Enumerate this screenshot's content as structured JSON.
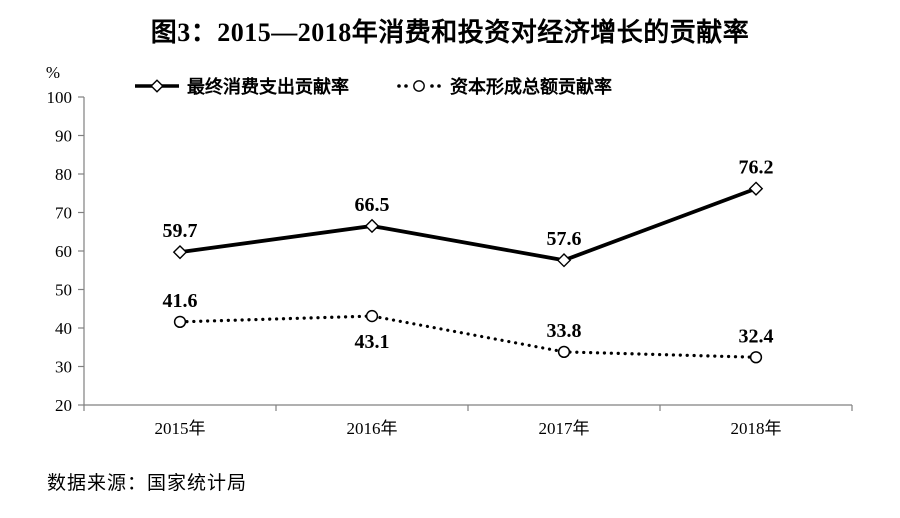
{
  "figure": {
    "title": "图3：2015—2018年消费和投资对经济增长的贡献率",
    "source": "数据来源：国家统计局"
  },
  "chart_data": {
    "type": "line",
    "title": "图3：2015—2018年消费和投资对经济增长的贡献率",
    "categories": [
      "2015年",
      "2016年",
      "2017年",
      "2018年"
    ],
    "series": [
      {
        "name": "最终消费支出贡献率",
        "values": [
          59.7,
          66.5,
          57.6,
          76.2
        ],
        "line_style": "solid",
        "marker": "diamond",
        "label_positions": [
          "above",
          "above",
          "above",
          "above"
        ]
      },
      {
        "name": "资本形成总额贡献率",
        "values": [
          41.6,
          43.1,
          33.8,
          32.4
        ],
        "line_style": "dotted",
        "marker": "circle",
        "label_positions": [
          "above",
          "below",
          "above",
          "above"
        ]
      }
    ],
    "xlabel": "",
    "ylabel": "%",
    "ylim": [
      20,
      100
    ],
    "yticks": [
      20,
      30,
      40,
      50,
      60,
      70,
      80,
      90,
      100
    ],
    "grid": false,
    "legend_position": "top-left",
    "colors": {
      "series": "#000000",
      "axis": "#808080",
      "text": "#000000",
      "background": "#ffffff"
    }
  }
}
